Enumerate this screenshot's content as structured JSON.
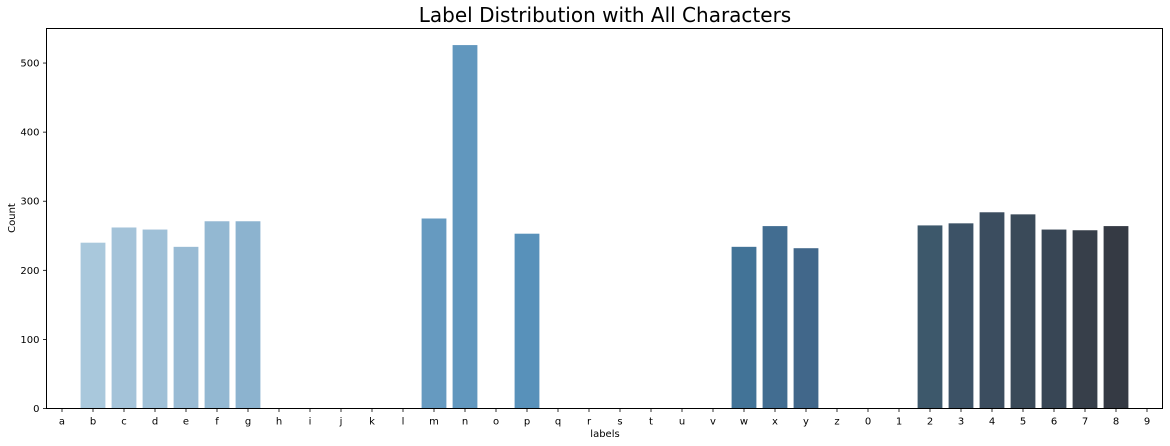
{
  "chart_data": {
    "type": "bar",
    "title": "Label Distribution with All Characters",
    "xlabel": "labels",
    "ylabel": "Count",
    "ylim": [
      0,
      550
    ],
    "yticks": [
      0,
      100,
      200,
      300,
      400,
      500
    ],
    "grid": false,
    "categories": [
      "a",
      "b",
      "c",
      "d",
      "e",
      "f",
      "g",
      "h",
      "i",
      "j",
      "k",
      "l",
      "m",
      "n",
      "o",
      "p",
      "q",
      "r",
      "s",
      "t",
      "u",
      "v",
      "w",
      "x",
      "y",
      "z",
      "0",
      "1",
      "2",
      "3",
      "4",
      "5",
      "6",
      "7",
      "8",
      "9"
    ],
    "values": [
      0,
      240,
      262,
      259,
      234,
      271,
      271,
      0,
      0,
      0,
      0,
      0,
      275,
      526,
      0,
      253,
      0,
      0,
      0,
      0,
      0,
      0,
      234,
      264,
      232,
      0,
      0,
      0,
      265,
      268,
      284,
      281,
      259,
      258,
      264,
      0
    ],
    "colors": [
      "#a9c8dc",
      "#a9c8dc",
      "#a4c3d9",
      "#9fc0d7",
      "#99bbd4",
      "#93b8d2",
      "#8cb3cf",
      "#86aecb",
      "#7faac9",
      "#78a6c6",
      "#72a1c4",
      "#6c9dc1",
      "#669ac0",
      "#6197be",
      "#5c95bd",
      "#5891ba",
      "#548eb6",
      "#4f8ab2",
      "#4c86ad",
      "#4983a8",
      "#467ea2",
      "#43799c",
      "#427397",
      "#426d91",
      "#41678a",
      "#416182",
      "#405c7a",
      "#3f5773",
      "#3d586b",
      "#3c5266",
      "#3b4d5f",
      "#3a4a59",
      "#384655",
      "#373f4a",
      "#353a44",
      "#33363d"
    ]
  }
}
